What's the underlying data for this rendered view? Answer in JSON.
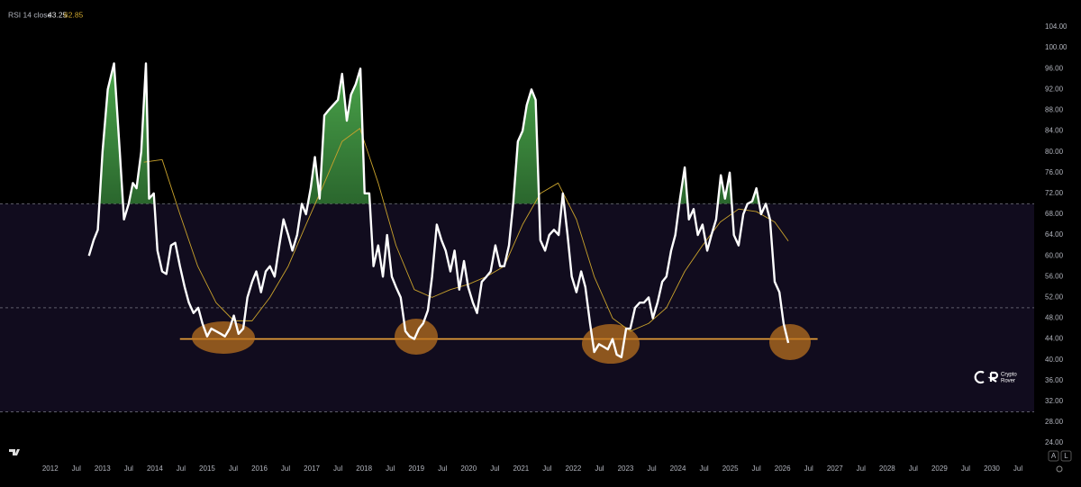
{
  "header": {
    "label": "RSI 14 close",
    "values": [
      43.25,
      62.85
    ]
  },
  "watermark": [
    "Crypto",
    "Rover"
  ],
  "buttons": [
    "A",
    "L"
  ],
  "chart_data": {
    "type": "line",
    "xlim": [
      2011.04,
      2030.81
    ],
    "ylim": [
      20.9,
      109.2
    ],
    "levels": [
      70,
      50,
      30
    ],
    "band": [
      30,
      70
    ],
    "band_color": "#110c1e",
    "fill_above": 70,
    "support_line": {
      "value": 44,
      "x": [
        2014.48,
        2026.67
      ],
      "color": "#f0a53a"
    },
    "series": [
      {
        "name": "RSI",
        "color": "#ffffff",
        "x": [
          2012.74,
          2012.83,
          2012.91,
          2013.0,
          2013.1,
          2013.22,
          2013.33,
          2013.41,
          2013.5,
          2013.58,
          2013.65,
          2013.74,
          2013.83,
          2013.89,
          2013.98,
          2014.05,
          2014.14,
          2014.22,
          2014.31,
          2014.39,
          2014.48,
          2014.57,
          2014.65,
          2014.74,
          2014.83,
          2014.91,
          2015.0,
          2015.08,
          2015.17,
          2015.26,
          2015.34,
          2015.43,
          2015.51,
          2015.6,
          2015.69,
          2015.77,
          2015.86,
          2015.94,
          2016.03,
          2016.12,
          2016.2,
          2016.29,
          2016.38,
          2016.46,
          2016.55,
          2016.63,
          2016.72,
          2016.81,
          2016.89,
          2016.98,
          2017.06,
          2017.15,
          2017.24,
          2017.32,
          2017.41,
          2017.5,
          2017.58,
          2017.67,
          2017.75,
          2017.84,
          2017.93,
          2018.01,
          2018.1,
          2018.18,
          2018.27,
          2018.36,
          2018.44,
          2018.53,
          2018.61,
          2018.7,
          2018.79,
          2018.87,
          2018.96,
          2019.05,
          2019.13,
          2019.22,
          2019.3,
          2019.39,
          2019.48,
          2019.56,
          2019.65,
          2019.73,
          2019.82,
          2019.91,
          2019.99,
          2020.08,
          2020.16,
          2020.25,
          2020.34,
          2020.42,
          2020.51,
          2020.6,
          2020.68,
          2020.77,
          2020.85,
          2020.94,
          2021.03,
          2021.11,
          2021.2,
          2021.28,
          2021.37,
          2021.46,
          2021.54,
          2021.63,
          2021.72,
          2021.8,
          2021.89,
          2021.97,
          2022.06,
          2022.15,
          2022.23,
          2022.32,
          2022.4,
          2022.49,
          2022.58,
          2022.66,
          2022.75,
          2022.83,
          2022.92,
          2023.01,
          2023.09,
          2023.18,
          2023.27,
          2023.35,
          2023.44,
          2023.52,
          2023.61,
          2023.7,
          2023.78,
          2023.87,
          2023.95,
          2024.04,
          2024.13,
          2024.21,
          2024.3,
          2024.38,
          2024.47,
          2024.56,
          2024.64,
          2024.73,
          2024.82,
          2024.9,
          2024.99,
          2025.07,
          2025.16,
          2025.25,
          2025.33,
          2025.42,
          2025.5,
          2025.59,
          2025.68,
          2025.76,
          2025.85,
          2025.94,
          2026.02,
          2026.11
        ],
        "values": [
          60,
          63,
          65,
          80,
          92,
          97,
          80,
          67,
          70,
          74,
          73,
          80,
          97,
          71,
          72,
          61,
          57,
          56.5,
          62,
          62.5,
          58,
          54,
          51,
          49,
          50,
          47,
          44.5,
          46,
          45.5,
          45,
          44.5,
          46,
          48.5,
          45,
          46,
          52,
          55,
          57,
          53,
          57,
          58,
          56,
          62,
          67,
          64,
          61,
          64,
          70,
          68,
          73,
          79,
          71,
          87,
          88,
          89,
          90,
          95,
          86,
          91,
          93,
          96,
          72,
          72,
          58,
          62,
          56,
          64,
          56,
          54,
          52,
          45.5,
          44.5,
          44,
          46,
          47,
          49.5,
          56,
          66,
          63,
          61,
          57,
          61,
          53.5,
          59,
          54,
          51,
          49,
          55,
          56,
          57,
          62,
          58,
          58,
          62,
          70,
          82,
          84,
          89,
          92,
          90,
          63,
          61,
          64,
          65,
          64,
          72,
          64,
          56,
          53,
          57,
          54,
          47,
          41.5,
          43,
          42.5,
          42,
          44,
          41,
          40.5,
          46,
          46,
          50,
          51,
          51,
          52,
          48,
          51,
          55,
          56,
          61,
          64,
          71,
          77,
          67,
          69,
          64,
          66,
          61,
          64,
          67,
          75.5,
          71,
          76,
          64,
          62,
          68,
          70,
          70.5,
          73,
          68,
          70,
          67,
          55,
          53,
          47,
          43.25
        ]
      },
      {
        "name": "RSI MA",
        "color": "#c9a22c",
        "x": [
          2013.79,
          2014.14,
          2014.48,
          2014.82,
          2015.17,
          2015.51,
          2015.86,
          2016.2,
          2016.55,
          2016.89,
          2017.24,
          2017.58,
          2017.92,
          2018.27,
          2018.61,
          2018.96,
          2019.3,
          2019.65,
          2019.99,
          2020.34,
          2020.68,
          2021.03,
          2021.37,
          2021.71,
          2022.06,
          2022.4,
          2022.75,
          2023.09,
          2023.44,
          2023.78,
          2024.13,
          2024.47,
          2024.81,
          2025.16,
          2025.5,
          2025.85,
          2026.11
        ],
        "values": [
          78,
          78.5,
          68,
          58,
          51,
          47.5,
          47.5,
          52,
          58,
          66,
          74,
          82,
          84.5,
          74,
          62,
          53.5,
          52,
          53.5,
          54.5,
          56,
          58,
          66,
          72,
          74,
          67,
          56,
          48,
          45.5,
          47,
          50,
          57,
          62,
          66.5,
          69,
          68.5,
          66.5,
          62.85
        ]
      }
    ],
    "yticks": [
      {
        "value": 24,
        "label": "24.00"
      },
      {
        "value": 28,
        "label": "28.00"
      },
      {
        "value": 32,
        "label": "32.00"
      },
      {
        "value": 36,
        "label": "36.00"
      },
      {
        "value": 40,
        "label": "40.00"
      },
      {
        "value": 44,
        "label": "44.00"
      },
      {
        "value": 48,
        "label": "48.00"
      },
      {
        "value": 52,
        "label": "52.00"
      },
      {
        "value": 56,
        "label": "56.00"
      },
      {
        "value": 60,
        "label": "60.00"
      },
      {
        "value": 64,
        "label": "64.00"
      },
      {
        "value": 68,
        "label": "68.00"
      },
      {
        "value": 72,
        "label": "72.00"
      },
      {
        "value": 76,
        "label": "76.00"
      },
      {
        "value": 80,
        "label": "80.00"
      },
      {
        "value": 84,
        "label": "84.00"
      },
      {
        "value": 88,
        "label": "88.00"
      },
      {
        "value": 92,
        "label": "92.00"
      },
      {
        "value": 96,
        "label": "96.00"
      },
      {
        "value": 100,
        "label": "100.00"
      },
      {
        "value": 104,
        "label": "104.00"
      }
    ],
    "xticks": [
      2012,
      {
        "value": 2012.5,
        "label": "Jul"
      },
      2013,
      {
        "value": 2013.5,
        "label": "Jul"
      },
      2014,
      {
        "value": 2014.5,
        "label": "Jul"
      },
      2015,
      {
        "value": 2015.5,
        "label": "Jul"
      },
      2016,
      {
        "value": 2016.5,
        "label": "Jul"
      },
      2017,
      {
        "value": 2017.5,
        "label": "Jul"
      },
      2018,
      {
        "value": 2018.5,
        "label": "Jul"
      },
      2019,
      {
        "value": 2019.5,
        "label": "Jul"
      },
      2020,
      {
        "value": 2020.5,
        "label": "Jul"
      },
      2021,
      {
        "value": 2021.5,
        "label": "Jul"
      },
      2022,
      {
        "value": 2022.5,
        "label": "Jul"
      },
      2023,
      {
        "value": 2023.5,
        "label": "Jul"
      },
      2024,
      {
        "value": 2024.5,
        "label": "Jul"
      },
      2025,
      {
        "value": 2025.5,
        "label": "Jul"
      },
      2026,
      {
        "value": 2026.5,
        "label": "Jul"
      },
      2027,
      {
        "value": 2027.5,
        "label": "Jul"
      },
      2028,
      {
        "value": 2028.5,
        "label": "Jul"
      },
      2029,
      {
        "value": 2029.5,
        "label": "Jul"
      },
      2030,
      {
        "value": 2030.5,
        "label": "Jul"
      }
    ]
  }
}
